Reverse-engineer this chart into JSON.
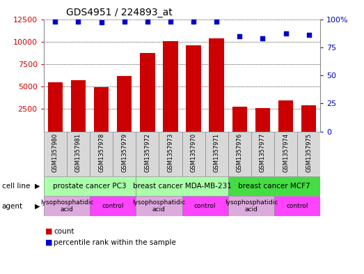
{
  "title": "GDS4951 / 224893_at",
  "samples": [
    "GSM1357980",
    "GSM1357981",
    "GSM1357978",
    "GSM1357979",
    "GSM1357972",
    "GSM1357973",
    "GSM1357970",
    "GSM1357971",
    "GSM1357976",
    "GSM1357977",
    "GSM1357974",
    "GSM1357975"
  ],
  "counts": [
    5500,
    5700,
    4900,
    6200,
    8700,
    10050,
    9600,
    10400,
    2800,
    2600,
    3500,
    2900
  ],
  "percentile_ranks": [
    98,
    98,
    97,
    98,
    98,
    98,
    98,
    98,
    85,
    83,
    87,
    86
  ],
  "bar_color": "#CC0000",
  "dot_color": "#0000CC",
  "ylim_left": [
    0,
    12500
  ],
  "ylim_right": [
    0,
    100
  ],
  "yticks_left": [
    2500,
    5000,
    7500,
    10000,
    12500
  ],
  "yticks_right": [
    0,
    25,
    50,
    75,
    100
  ],
  "ytick_labels_right": [
    "0",
    "25",
    "50",
    "75",
    "100%"
  ],
  "cell_lines": [
    {
      "label": "prostate cancer PC3",
      "start": 0,
      "end": 4,
      "color": "#AAFFAA"
    },
    {
      "label": "breast cancer MDA-MB-231",
      "start": 4,
      "end": 8,
      "color": "#AAFFAA"
    },
    {
      "label": "breast cancer MCF7",
      "start": 8,
      "end": 12,
      "color": "#44DD44"
    }
  ],
  "agents": [
    {
      "label": "lysophosphatidic\nacid",
      "start": 0,
      "end": 2,
      "color": "#DDAADD"
    },
    {
      "label": "control",
      "start": 2,
      "end": 4,
      "color": "#FF44FF"
    },
    {
      "label": "lysophosphatidic\nacid",
      "start": 4,
      "end": 6,
      "color": "#DDAADD"
    },
    {
      "label": "control",
      "start": 6,
      "end": 8,
      "color": "#FF44FF"
    },
    {
      "label": "lysophosphatidic\nacid",
      "start": 8,
      "end": 10,
      "color": "#DDAADD"
    },
    {
      "label": "control",
      "start": 10,
      "end": 12,
      "color": "#FF44FF"
    }
  ],
  "bg_color": "#FFFFFF",
  "sample_bg_color": "#D8D8D8",
  "border_color": "#888888"
}
